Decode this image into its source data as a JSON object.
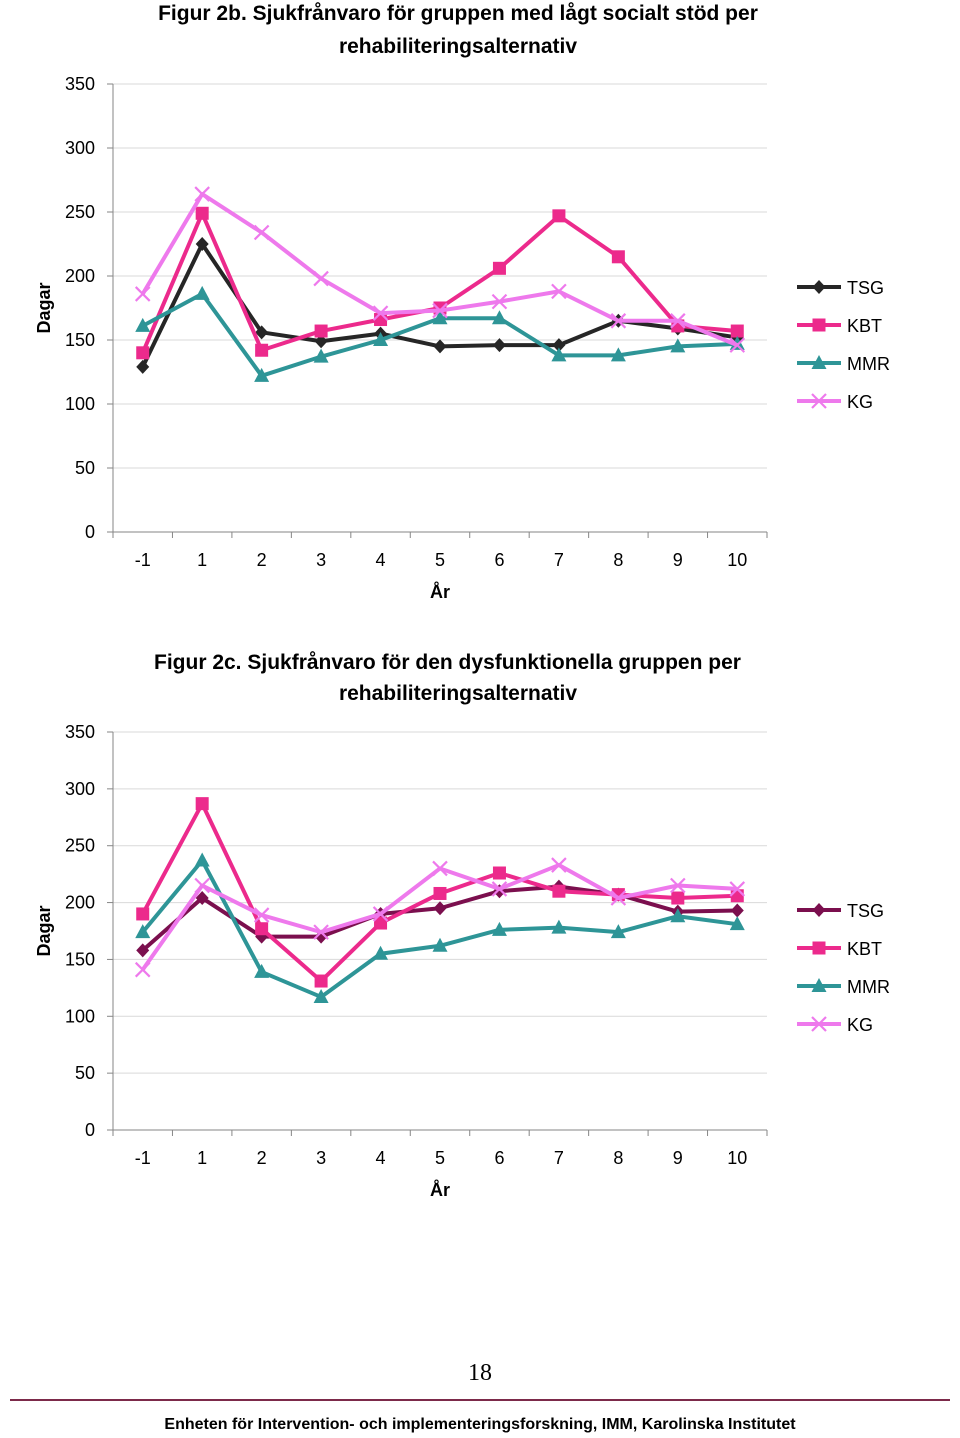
{
  "chart_data": [
    {
      "type": "line",
      "title_line1": "Figur 2b. Sjukfrånvaro för gruppen med lågt socialt stöd per",
      "title_line2": "rehabiliteringsalternativ",
      "xlabel": "År",
      "ylabel": "Dagar",
      "categories": [
        "-1",
        "1",
        "2",
        "3",
        "4",
        "5",
        "6",
        "7",
        "8",
        "9",
        "10"
      ],
      "ylim": [
        0,
        350
      ],
      "yticks": [
        "0",
        "50",
        "100",
        "150",
        "200",
        "250",
        "300",
        "350"
      ],
      "grid": true,
      "legend_position": "right",
      "series": [
        {
          "name": "TSG",
          "color": "#262626",
          "marker": "diamond",
          "values": [
            129,
            225,
            156,
            149,
            155,
            145,
            146,
            146,
            165,
            159,
            152
          ]
        },
        {
          "name": "KBT",
          "color": "#ec2a8c",
          "marker": "square",
          "values": [
            140,
            249,
            142,
            157,
            166,
            175,
            206,
            247,
            215,
            161,
            157
          ]
        },
        {
          "name": "MMR",
          "color": "#2e9597",
          "marker": "triangle",
          "values": [
            161,
            186,
            122,
            137,
            150,
            167,
            167,
            138,
            138,
            145,
            147
          ]
        },
        {
          "name": "KG",
          "color": "#ee79ec",
          "marker": "x",
          "values": [
            186,
            264,
            234,
            198,
            171,
            173,
            180,
            188,
            165,
            165,
            146
          ]
        }
      ]
    },
    {
      "type": "line",
      "title_line1": "Figur 2c. Sjukfrånvaro för den dysfunktionella gruppen per",
      "title_line2": "rehabiliteringsalternativ",
      "xlabel": "År",
      "ylabel": "Dagar",
      "categories": [
        "-1",
        "1",
        "2",
        "3",
        "4",
        "5",
        "6",
        "7",
        "8",
        "9",
        "10"
      ],
      "ylim": [
        0,
        350
      ],
      "yticks": [
        "0",
        "50",
        "100",
        "150",
        "200",
        "250",
        "300",
        "350"
      ],
      "grid": true,
      "legend_position": "right",
      "series": [
        {
          "name": "TSG",
          "color": "#7b0f4e",
          "marker": "diamond",
          "values": [
            158,
            204,
            170,
            170,
            190,
            195,
            210,
            214,
            207,
            192,
            193
          ]
        },
        {
          "name": "KBT",
          "color": "#ec2a8c",
          "marker": "square",
          "values": [
            190,
            287,
            177,
            131,
            182,
            208,
            226,
            210,
            207,
            204,
            206
          ]
        },
        {
          "name": "MMR",
          "color": "#2e9597",
          "marker": "triangle",
          "values": [
            174,
            237,
            139,
            117,
            155,
            162,
            176,
            178,
            174,
            188,
            181
          ]
        },
        {
          "name": "KG",
          "color": "#ee79ec",
          "marker": "x",
          "values": [
            141,
            215,
            189,
            174,
            190,
            230,
            212,
            233,
            204,
            215,
            212
          ]
        }
      ]
    }
  ],
  "page_number": "18",
  "footer": "Enheten för Intervention- och implementeringsforskning, IMM, Karolinska Institutet"
}
